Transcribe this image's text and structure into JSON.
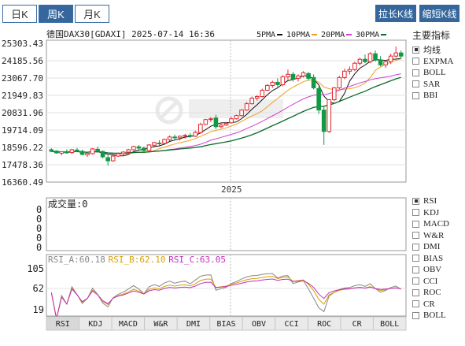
{
  "period_tabs": [
    {
      "label": "日K",
      "active": false
    },
    {
      "label": "周K",
      "active": true
    },
    {
      "label": "月K",
      "active": false
    }
  ],
  "buttons": {
    "stretch": "拉长K线",
    "shrink": "缩短K线"
  },
  "header": {
    "symbol": "德国DAX30[GDAXI] 2025-07-14 16:36",
    "ma_legend": [
      {
        "label": "5PMA",
        "color": "#111111"
      },
      {
        "label": "10PMA",
        "color": "#f0a020"
      },
      {
        "label": "20PMA",
        "color": "#d040d0"
      },
      {
        "label": "30PMA",
        "color": "#0a6a2a"
      }
    ]
  },
  "main_indicators": {
    "title": "主要指标",
    "items": [
      {
        "label": "均线",
        "checked": true
      },
      {
        "label": "EXPMA",
        "checked": false
      },
      {
        "label": "BOLL",
        "checked": false
      },
      {
        "label": "SAR",
        "checked": false
      },
      {
        "label": "BBI",
        "checked": false
      }
    ]
  },
  "sub_indicators": [
    {
      "label": "RSI",
      "checked": true
    },
    {
      "label": "KDJ",
      "checked": false
    },
    {
      "label": "MACD",
      "checked": false
    },
    {
      "label": "W&R",
      "checked": false
    },
    {
      "label": "DMI",
      "checked": false
    },
    {
      "label": "BIAS",
      "checked": false
    },
    {
      "label": "OBV",
      "checked": false
    },
    {
      "label": "CCI",
      "checked": false
    },
    {
      "label": "ROC",
      "checked": false
    },
    {
      "label": "CR",
      "checked": false
    },
    {
      "label": "BOLL",
      "checked": false
    }
  ],
  "volume": {
    "label": "成交量:0",
    "ticks": [
      "0",
      "0",
      "0",
      "0",
      "0"
    ]
  },
  "rsi": {
    "labels": [
      {
        "text": "RSI_A:60.18",
        "color": "#888888"
      },
      {
        "text": "RSI_B:62.10",
        "color": "#d9a000"
      },
      {
        "text": "RSI_C:63.05",
        "color": "#c030c0"
      }
    ],
    "ticks": [
      "105",
      "62",
      "19"
    ]
  },
  "bottom_tabs": [
    "RSI",
    "KDJ",
    "MACD",
    "W&R",
    "DMI",
    "BIAS",
    "OBV",
    "CCI",
    "ROC",
    "CR",
    "BOLL"
  ],
  "chart_data": {
    "type": "candlestick",
    "title": "德国DAX30[GDAXI] 2025-07-14 16:36",
    "x_label_middle": "2025",
    "y_ticks": [
      "25303.43",
      "24185.56",
      "23067.70",
      "21949.83",
      "20831.96",
      "19714.09",
      "18596.22",
      "17478.36",
      "16360.49"
    ],
    "ylim": [
      16360.49,
      25303.43
    ],
    "series_names": [
      "5PMA",
      "10PMA",
      "20PMA",
      "30PMA"
    ],
    "candles": [
      [
        18400,
        18500,
        18250,
        18300
      ],
      [
        18320,
        18360,
        18150,
        18200
      ],
      [
        18180,
        18300,
        18050,
        18280
      ],
      [
        18280,
        18420,
        18150,
        18200
      ],
      [
        18220,
        18450,
        18120,
        18400
      ],
      [
        18380,
        18520,
        18250,
        18300
      ],
      [
        18300,
        18400,
        18050,
        18100
      ],
      [
        18080,
        18200,
        17950,
        18180
      ],
      [
        18150,
        18500,
        18100,
        18450
      ],
      [
        18430,
        18600,
        18250,
        18300
      ],
      [
        18290,
        18350,
        17850,
        17950
      ],
      [
        17900,
        18050,
        17400,
        17700
      ],
      [
        17700,
        18050,
        17650,
        18000
      ],
      [
        18000,
        18200,
        17950,
        18150
      ],
      [
        18150,
        18300,
        18050,
        18250
      ],
      [
        18250,
        18450,
        18200,
        18400
      ],
      [
        18400,
        18650,
        18350,
        18600
      ],
      [
        18580,
        18700,
        18400,
        18500
      ],
      [
        18500,
        18600,
        18250,
        18350
      ],
      [
        18350,
        18750,
        18300,
        18700
      ],
      [
        18680,
        18900,
        18550,
        18850
      ],
      [
        18820,
        19000,
        18650,
        18800
      ],
      [
        18800,
        19100,
        18750,
        19050
      ],
      [
        19030,
        19300,
        18950,
        19200
      ],
      [
        19200,
        19350,
        19050,
        19150
      ],
      [
        19150,
        19300,
        19000,
        19250
      ],
      [
        19250,
        19400,
        19100,
        19300
      ],
      [
        19300,
        19450,
        19150,
        19250
      ],
      [
        19250,
        19600,
        19200,
        19500
      ],
      [
        19480,
        20100,
        19400,
        20000
      ],
      [
        20000,
        20350,
        19950,
        20300
      ],
      [
        20320,
        20450,
        20150,
        20350
      ],
      [
        20400,
        20600,
        19700,
        19850
      ],
      [
        19850,
        20100,
        19750,
        19950
      ],
      [
        19950,
        20150,
        19900,
        20050
      ],
      [
        20100,
        20450,
        20050,
        20350
      ],
      [
        20350,
        20600,
        20300,
        20550
      ],
      [
        20550,
        20950,
        20500,
        20900
      ],
      [
        20900,
        21400,
        20850,
        21300
      ],
      [
        21300,
        21750,
        21250,
        21650
      ],
      [
        21650,
        21850,
        21500,
        21750
      ],
      [
        21750,
        22250,
        21700,
        22150
      ],
      [
        22150,
        22550,
        22100,
        22450
      ],
      [
        22450,
        22750,
        22300,
        22650
      ],
      [
        22650,
        22900,
        22350,
        22500
      ],
      [
        22500,
        23100,
        22400,
        23000
      ],
      [
        23000,
        23450,
        22800,
        23150
      ],
      [
        23150,
        23300,
        22700,
        22850
      ],
      [
        22900,
        23150,
        22700,
        23050
      ],
      [
        23050,
        23350,
        22950,
        23250
      ],
      [
        23200,
        23300,
        22750,
        22900
      ],
      [
        22950,
        23150,
        22200,
        22300
      ],
      [
        22250,
        22400,
        20650,
        20900
      ],
      [
        20900,
        21150,
        18700,
        19550
      ],
      [
        19550,
        21600,
        19450,
        21550
      ],
      [
        21550,
        22350,
        21450,
        22300
      ],
      [
        22300,
        23050,
        22200,
        22950
      ],
      [
        22950,
        23500,
        22850,
        23350
      ],
      [
        23350,
        23650,
        23150,
        23450
      ],
      [
        23450,
        23950,
        23350,
        23850
      ],
      [
        23850,
        24200,
        23700,
        24100
      ],
      [
        24100,
        24400,
        23850,
        23950
      ],
      [
        23950,
        24550,
        23850,
        24450
      ],
      [
        24450,
        24650,
        23950,
        24050
      ],
      [
        24050,
        24300,
        23650,
        23750
      ],
      [
        23750,
        24050,
        23550,
        23950
      ],
      [
        23950,
        24450,
        23800,
        24300
      ],
      [
        24300,
        24900,
        24200,
        24500
      ],
      [
        24500,
        24650,
        24150,
        24300
      ]
    ]
  }
}
